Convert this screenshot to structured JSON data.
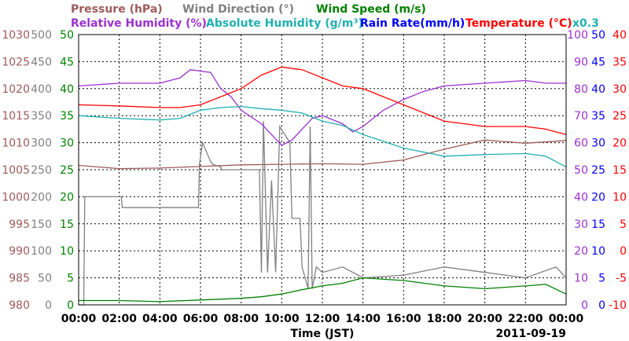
{
  "chart_data": {
    "type": "line",
    "xlabel": "Time (JST)",
    "date_label": "2011-09-19",
    "x_ticks": [
      "00:00",
      "02:00",
      "04:00",
      "06:00",
      "08:00",
      "10:00",
      "12:00",
      "14:00",
      "16:00",
      "18:00",
      "20:00",
      "22:00",
      "00:00"
    ],
    "grid": true,
    "colors": {
      "pressure": "#a05a5a",
      "wind_direction": "#808080",
      "wind_speed": "#008000",
      "humidity": "#9b30d0",
      "abs_humidity": "#20b0b0",
      "rain": "#0000ff",
      "temperature": "#ff0000"
    },
    "titles": {
      "pressure": "Pressure (hPa)",
      "wind_direction": "Wind Direction (°)",
      "wind_speed": "Wind Speed (m/s)",
      "humidity": "Relative Humidity (%)",
      "abs_humidity": "Absolute Humidity (g/m³)",
      "rain": "Rain Rate(mm/h)",
      "temperature": "Temperature (°C)",
      "rain_scale": "x0.3"
    },
    "axes": {
      "pressure": [
        "980",
        "985",
        "990",
        "995",
        "1000",
        "1005",
        "1010",
        "1015",
        "1020",
        "1025",
        "1030"
      ],
      "wind_direction": [
        "0",
        "50",
        "100",
        "150",
        "200",
        "250",
        "300",
        "350",
        "400",
        "450",
        "500"
      ],
      "wind_speed": [
        "0",
        "5",
        "10",
        "15",
        "20",
        "25",
        "30",
        "35",
        "40",
        "45",
        "50"
      ],
      "humidity": [
        "0",
        "10",
        "20",
        "30",
        "40",
        "50",
        "60",
        "70",
        "80",
        "90",
        "100"
      ],
      "rain": [
        "0",
        "5",
        "10",
        "15",
        "20",
        "25",
        "30",
        "35",
        "40",
        "45",
        "50"
      ],
      "temperature": [
        "-10",
        "-5",
        "0",
        "5",
        "10",
        "15",
        "20",
        "25",
        "30",
        "35",
        "40"
      ]
    },
    "series": [
      {
        "name": "Pressure (hPa)",
        "unit": "hPa",
        "ylim": [
          980,
          1030
        ],
        "x": [
          0,
          2,
          4,
          6,
          8,
          10,
          12,
          14,
          16,
          18,
          20,
          22,
          24
        ],
        "values": [
          1005.8,
          1005.2,
          1005.3,
          1005.6,
          1005.9,
          1006.0,
          1006.1,
          1006.0,
          1006.8,
          1008.8,
          1010.5,
          1009.9,
          1010.4
        ]
      },
      {
        "name": "Wind Direction (°)",
        "unit": "deg",
        "ylim": [
          0,
          500
        ],
        "x": [
          0,
          0.25,
          0.3,
          2.1,
          2.15,
          5.9,
          5.95,
          6.1,
          6.5,
          6.6,
          7.0,
          7.05,
          8.9,
          9.0,
          9.1,
          9.3,
          9.5,
          9.7,
          9.9,
          10.4,
          10.5,
          10.9,
          11.0,
          11.3,
          11.4,
          11.5,
          11.7,
          12.0,
          13.0,
          14.0,
          16.0,
          18.0,
          20.0,
          22.0,
          23.5,
          24.0
        ],
        "values": [
          0,
          0,
          200,
          200,
          180,
          180,
          260,
          300,
          265,
          260,
          255,
          250,
          250,
          60,
          340,
          60,
          230,
          60,
          330,
          300,
          160,
          160,
          70,
          30,
          330,
          30,
          70,
          60,
          70,
          50,
          55,
          70,
          60,
          50,
          70,
          50
        ]
      },
      {
        "name": "Wind Speed (m/s)",
        "unit": "m/s",
        "ylim": [
          0,
          50
        ],
        "x": [
          0,
          2,
          4,
          6,
          8,
          9,
          10,
          11,
          12,
          13,
          14,
          16,
          18,
          20,
          22,
          23,
          24
        ],
        "values": [
          0.8,
          0.8,
          0.6,
          0.9,
          1.2,
          1.5,
          2.0,
          2.8,
          3.5,
          4.0,
          5.0,
          4.5,
          3.5,
          3.0,
          3.5,
          3.8,
          2.0
        ]
      },
      {
        "name": "Relative Humidity (%)",
        "unit": "%",
        "ylim": [
          0,
          100
        ],
        "x": [
          0,
          2,
          4,
          5,
          5.5,
          6.5,
          7.0,
          7.5,
          8.0,
          9.0,
          9.5,
          10.0,
          10.5,
          11.0,
          11.5,
          12.0,
          13.0,
          13.5,
          14.0,
          15.0,
          16.0,
          17.0,
          18.0,
          20.0,
          22.0,
          23.0,
          24.0
        ],
        "values": [
          81,
          82,
          82,
          84,
          87,
          86,
          80,
          77,
          72,
          67,
          63,
          59,
          61,
          65,
          69,
          70,
          67,
          64,
          66,
          72,
          76,
          79,
          81,
          82,
          83,
          82,
          82
        ]
      },
      {
        "name": "Absolute Humidity (g/m³)",
        "unit": "g/m3",
        "ylim": [
          0,
          50
        ],
        "x": [
          0,
          2,
          4,
          5,
          6,
          7,
          8,
          9,
          10,
          11,
          12,
          13,
          14,
          16,
          18,
          20,
          22,
          23,
          24
        ],
        "values": [
          35,
          34.5,
          34.2,
          34.5,
          36,
          36.5,
          36.7,
          36.3,
          36,
          35.5,
          34,
          33.2,
          31.5,
          29,
          27.5,
          27.8,
          28,
          27.5,
          25.5
        ]
      },
      {
        "name": "Temperature (°C)",
        "unit": "C",
        "ylim": [
          -10,
          40
        ],
        "x": [
          0,
          2,
          4,
          5,
          6,
          7,
          8,
          9,
          10,
          11,
          12,
          13,
          14,
          15,
          16,
          18,
          20,
          22,
          23,
          24
        ],
        "values": [
          27,
          26.8,
          26.5,
          26.5,
          27,
          28.5,
          30,
          32.5,
          34,
          33.5,
          32,
          30.5,
          30,
          28.5,
          27,
          24,
          23,
          23,
          22.5,
          21.5
        ]
      }
    ]
  }
}
